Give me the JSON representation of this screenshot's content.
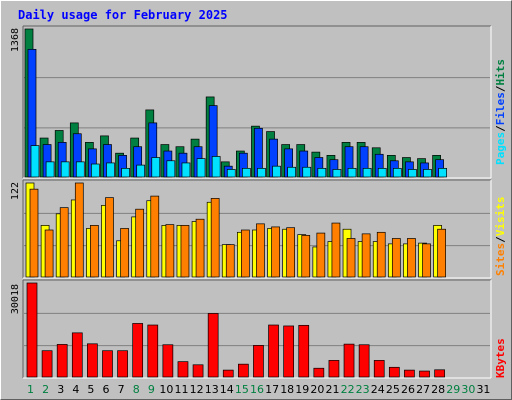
{
  "title": "Daily usage for February 2025",
  "colors": {
    "hits": "#008040",
    "files": "#0040ff",
    "pages": "#00e0ff",
    "visits": "#ffff00",
    "sites": "#ff8000",
    "kbytes": "#ff0000",
    "weekday": "#000000",
    "weekend": "#008040",
    "title": "#0000ff",
    "panel": "#c0c0c0"
  },
  "chart_data": [
    {
      "type": "bar",
      "title": "Daily usage for February 2025",
      "categories": [
        "1",
        "2",
        "3",
        "4",
        "5",
        "6",
        "7",
        "8",
        "9",
        "10",
        "11",
        "12",
        "13",
        "14",
        "15",
        "16",
        "17",
        "18",
        "19",
        "20",
        "21",
        "22",
        "23",
        "24",
        "25",
        "26",
        "27",
        "28",
        "29",
        "30",
        "31"
      ],
      "weekend_days": [
        "1",
        "2",
        "8",
        "9",
        "15",
        "16",
        "22",
        "23",
        "29",
        "30"
      ],
      "ylim": [
        0,
        1368
      ],
      "max_label": "1368",
      "series": [
        {
          "name": "Hits",
          "values": [
            1368,
            360,
            430,
            500,
            320,
            380,
            220,
            360,
            620,
            300,
            280,
            350,
            740,
            140,
            240,
            470,
            420,
            300,
            300,
            230,
            200,
            320,
            320,
            270,
            200,
            180,
            170,
            200,
            0,
            0,
            0
          ]
        },
        {
          "name": "Files",
          "values": [
            1180,
            300,
            320,
            400,
            260,
            300,
            200,
            280,
            500,
            240,
            220,
            280,
            660,
            100,
            220,
            450,
            350,
            260,
            240,
            180,
            160,
            280,
            280,
            210,
            150,
            140,
            130,
            160,
            0,
            0,
            0
          ]
        },
        {
          "name": "Pages",
          "values": [
            290,
            140,
            140,
            140,
            120,
            130,
            80,
            110,
            180,
            150,
            130,
            170,
            190,
            70,
            80,
            80,
            100,
            90,
            90,
            80,
            70,
            80,
            80,
            80,
            80,
            70,
            70,
            80,
            0,
            0,
            0
          ]
        }
      ]
    },
    {
      "type": "bar",
      "categories": [
        "1",
        "2",
        "3",
        "4",
        "5",
        "6",
        "7",
        "8",
        "9",
        "10",
        "11",
        "12",
        "13",
        "14",
        "15",
        "16",
        "17",
        "18",
        "19",
        "20",
        "21",
        "22",
        "23",
        "24",
        "25",
        "26",
        "27",
        "28",
        "29",
        "30",
        "31"
      ],
      "ylim": [
        0,
        122
      ],
      "max_label": "122",
      "series": [
        {
          "name": "Visits",
          "values": [
            122,
            67,
            82,
            100,
            63,
            93,
            47,
            78,
            99,
            67,
            67,
            72,
            97,
            42,
            58,
            61,
            63,
            62,
            55,
            39,
            46,
            62,
            46,
            46,
            43,
            43,
            44,
            67,
            0,
            0,
            0
          ]
        },
        {
          "name": "Sites",
          "values": [
            114,
            61,
            90,
            122,
            67,
            103,
            63,
            88,
            105,
            68,
            67,
            75,
            102,
            42,
            61,
            69,
            65,
            64,
            54,
            57,
            70,
            50,
            56,
            58,
            50,
            50,
            43,
            62,
            0,
            0,
            0
          ]
        }
      ]
    },
    {
      "type": "bar",
      "categories": [
        "1",
        "2",
        "3",
        "4",
        "5",
        "6",
        "7",
        "8",
        "9",
        "10",
        "11",
        "12",
        "13",
        "14",
        "15",
        "16",
        "17",
        "18",
        "19",
        "20",
        "21",
        "22",
        "23",
        "24",
        "25",
        "26",
        "27",
        "28",
        "29",
        "30",
        "31"
      ],
      "ylim": [
        0,
        30018
      ],
      "max_label": "30018",
      "series": [
        {
          "name": "KBytes",
          "values": [
            30018,
            8400,
            10400,
            14100,
            10600,
            8400,
            8400,
            17100,
            16600,
            10300,
            4900,
            3900,
            20300,
            2200,
            4100,
            10100,
            16600,
            16300,
            16500,
            2800,
            5300,
            10500,
            10300,
            5300,
            3100,
            2200,
            1900,
            2300,
            0,
            0,
            0
          ]
        }
      ]
    }
  ],
  "legend_top": [
    "Hits",
    "Files",
    "Pages"
  ],
  "legend_mid": [
    "Visits",
    "Sites"
  ],
  "legend_bottom": [
    "KBytes"
  ],
  "separator": "/"
}
